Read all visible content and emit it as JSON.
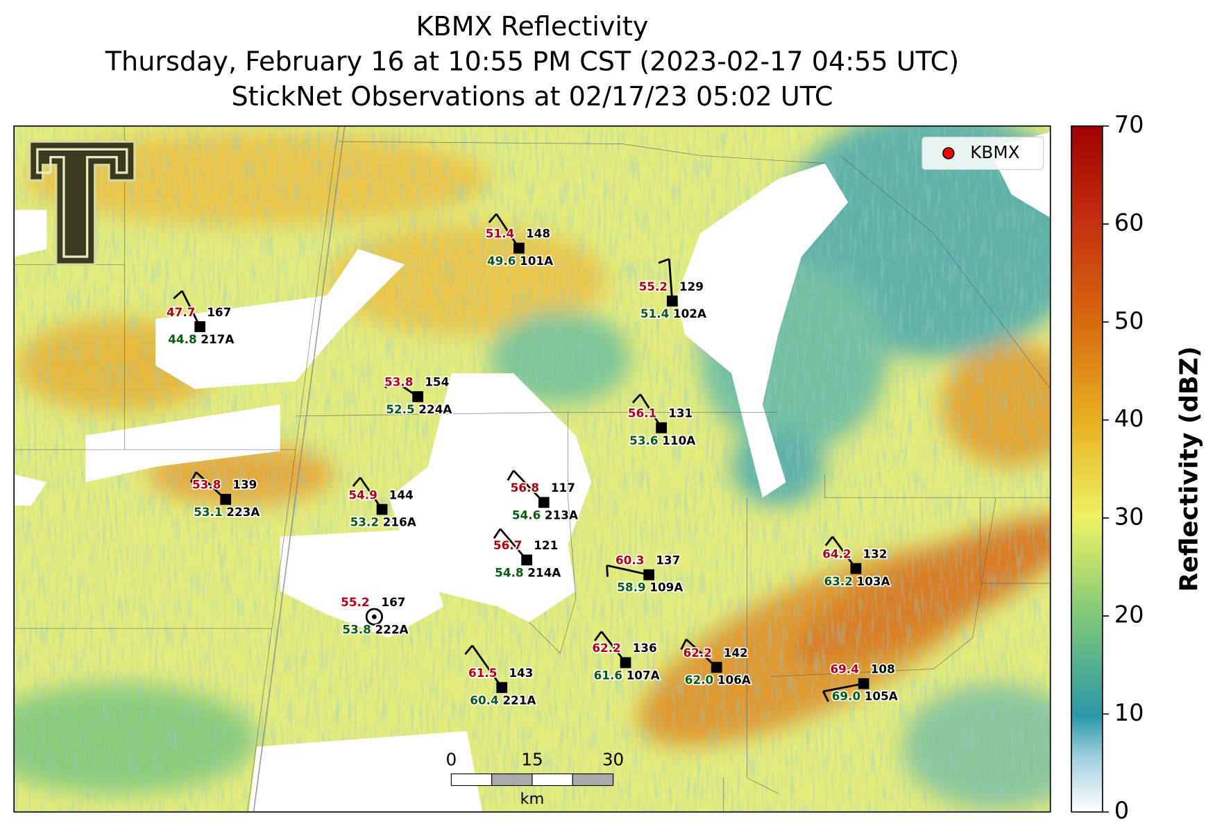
{
  "header": {
    "title": "KBMX Reflectivity",
    "subtitle": "Thursday, February 16 at 10:55 PM CST (2023-02-17 04:55 UTC)",
    "observations": "StickNet Observations at 02/17/23 05:02 UTC"
  },
  "legend": {
    "label": "KBMX"
  },
  "scale_bar": {
    "labels": [
      "0",
      "15",
      "30"
    ],
    "unit": "km"
  },
  "colorbar": {
    "label": "Reflectivity (dBZ)",
    "lim": [
      0,
      70
    ],
    "ticks": [
      0,
      10,
      20,
      30,
      40,
      50,
      60,
      70
    ]
  },
  "stations": [
    {
      "temperature": "51.4",
      "dewpoint": "49.6",
      "value": "148",
      "id": "101A"
    },
    {
      "temperature": "55.2",
      "dewpoint": "51.4",
      "value": "129",
      "id": "102A"
    },
    {
      "temperature": "47.7",
      "dewpoint": "44.8",
      "value": "167",
      "id": "217A"
    },
    {
      "temperature": "53.8",
      "dewpoint": "52.5",
      "value": "154",
      "id": "224A"
    },
    {
      "temperature": "56.1",
      "dewpoint": "53.6",
      "value": "131",
      "id": "110A"
    },
    {
      "temperature": "53.8",
      "dewpoint": "53.1",
      "value": "139",
      "id": "223A"
    },
    {
      "temperature": "54.9",
      "dewpoint": "53.2",
      "value": "144",
      "id": "216A"
    },
    {
      "temperature": "56.8",
      "dewpoint": "54.6",
      "value": "117",
      "id": "213A"
    },
    {
      "temperature": "56.7",
      "dewpoint": "54.8",
      "value": "121",
      "id": "214A"
    },
    {
      "temperature": "60.3",
      "dewpoint": "58.9",
      "value": "137",
      "id": "109A"
    },
    {
      "temperature": "64.2",
      "dewpoint": "63.2",
      "value": "132",
      "id": "103A"
    },
    {
      "temperature": "55.2",
      "dewpoint": "53.8",
      "value": "167",
      "id": "222A"
    },
    {
      "temperature": "61.5",
      "dewpoint": "60.4",
      "value": "143",
      "id": "221A"
    },
    {
      "temperature": "62.2",
      "dewpoint": "61.6",
      "value": "136",
      "id": "107A"
    },
    {
      "temperature": "62.2",
      "dewpoint": "62.0",
      "value": "142",
      "id": "106A"
    },
    {
      "temperature": "69.4",
      "dewpoint": "69.0",
      "value": "108",
      "id": "105A"
    }
  ]
}
